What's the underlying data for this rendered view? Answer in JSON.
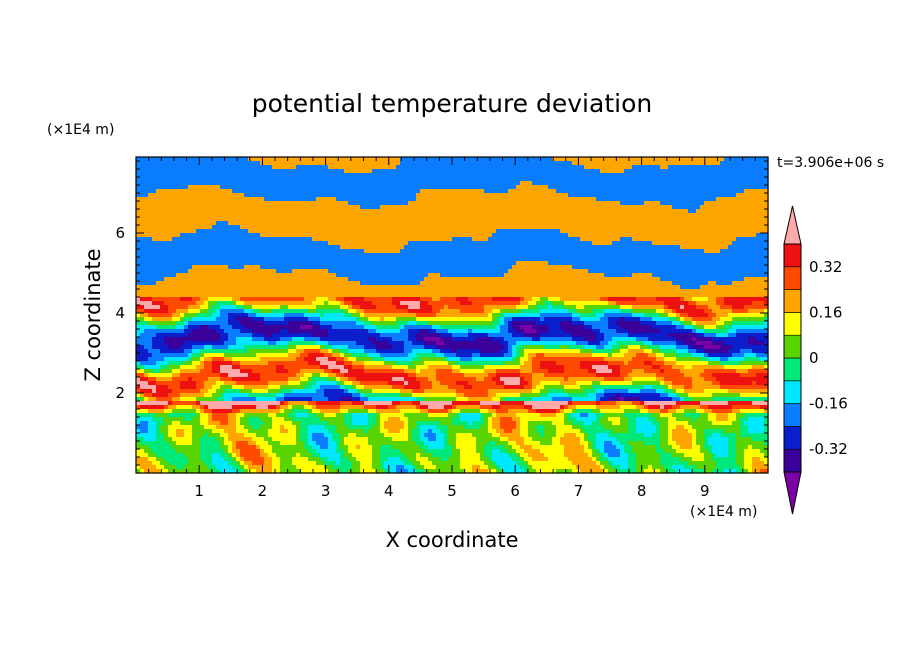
{
  "chart_data": {
    "type": "heatmap",
    "title": "potential temperature deviation",
    "time_label": "t=3.906e+06 s",
    "xlabel": "X coordinate",
    "ylabel": "Z coordinate",
    "x_unit": "(×1E4 m)",
    "y_unit": "(×1E4 m)",
    "xlim": [
      0,
      10
    ],
    "ylim": [
      0,
      7.9
    ],
    "x_ticks": [
      "1",
      "2",
      "3",
      "4",
      "5",
      "6",
      "7",
      "8",
      "9"
    ],
    "y_ticks": [
      "2",
      "4",
      "6"
    ],
    "colorbar": {
      "tick_labels": [
        "0.32",
        "0.16",
        "0",
        "-0.16",
        "-0.32"
      ],
      "levels": [
        -0.4,
        -0.32,
        -0.24,
        -0.16,
        -0.08,
        0,
        0.08,
        0.16,
        0.24,
        0.32,
        0.4
      ],
      "colors": [
        "#7a00a8",
        "#3a0099",
        "#0a1ecc",
        "#0a7cff",
        "#00e8ff",
        "#00e87a",
        "#5ad400",
        "#ffff00",
        "#ffa500",
        "#ff4a00",
        "#ee1111",
        "#ffaaaa"
      ],
      "extend": "both"
    }
  }
}
